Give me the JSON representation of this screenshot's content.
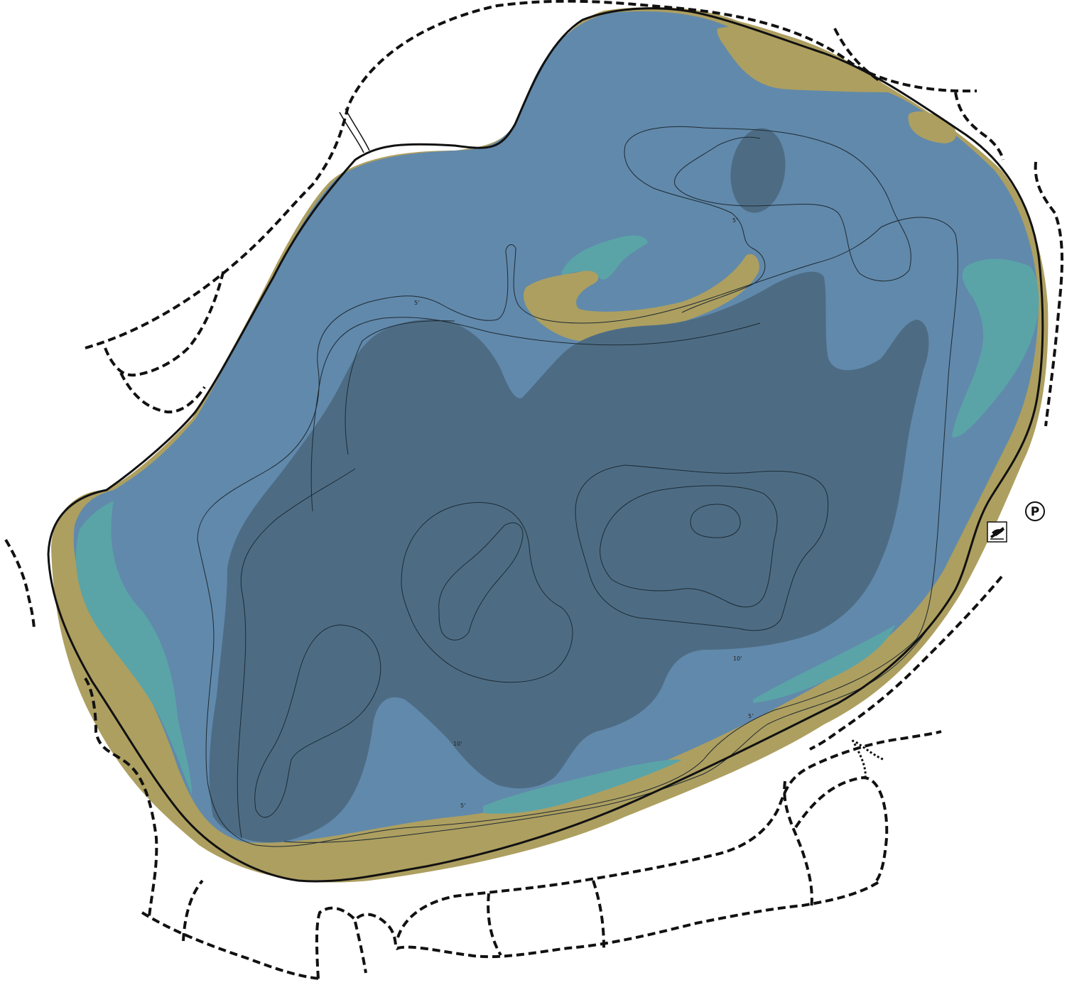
{
  "map": {
    "contour_labels": {
      "depth_5": "5'",
      "depth_10": "10'"
    },
    "legend_symbols": {
      "parking": "P",
      "boat_launch": "boat-launch-icon"
    },
    "colors": {
      "water_shallow": "#6189ab",
      "water_deep": "#4d6c84",
      "shore_sand": "#ad9f60",
      "vegetation_teal": "#5aa4a8",
      "shoreline": "#111111",
      "trail": "#111111"
    }
  }
}
